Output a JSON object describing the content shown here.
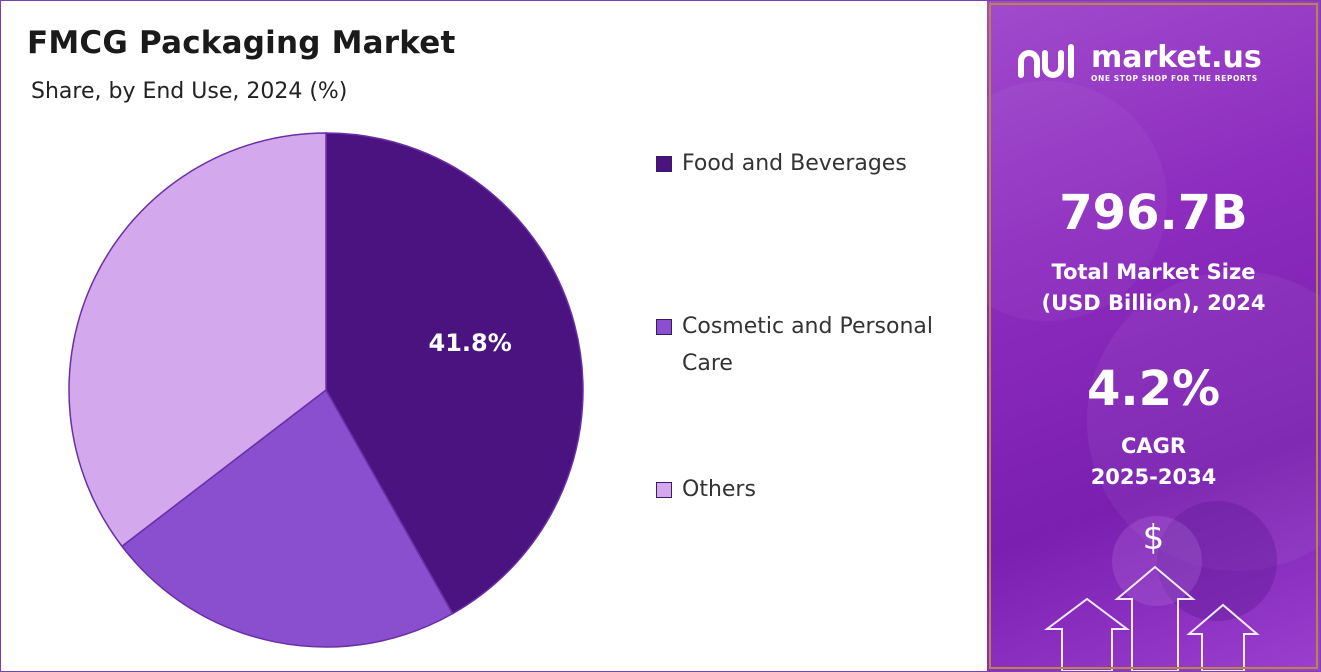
{
  "chart_data": {
    "type": "pie",
    "title": "FMCG Packaging Market",
    "subtitle": "Share, by End Use, 2024 (%)",
    "categories": [
      "Food and Beverages",
      "Cosmetic and Personal Care",
      "Others"
    ],
    "values": [
      41.8,
      22.8,
      35.4
    ],
    "data_labels": [
      "41.8%",
      "",
      ""
    ],
    "colors": [
      "#4b1380",
      "#8a4fcf",
      "#d3a8ec"
    ],
    "legend_position": "right"
  },
  "legend": {
    "items": [
      {
        "label": "Food and Beverages",
        "color": "#4b1380"
      },
      {
        "label": "Cosmetic and Personal Care",
        "color": "#8a4fcf"
      },
      {
        "label": "Others",
        "color": "#d3a8ec"
      }
    ]
  },
  "panel": {
    "brand": "market.us",
    "tagline": "ONE STOP SHOP FOR THE REPORTS",
    "market_size_value": "796.7B",
    "market_size_label_1": "Total Market Size",
    "market_size_label_2": "(USD Billion), 2024",
    "cagr_value": "4.2%",
    "cagr_label_1": "CAGR",
    "cagr_label_2": "2025-2034",
    "dollar_symbol": "$"
  },
  "colors": {
    "accent": "#7a3fb0",
    "panel_bg": "#8d2cbf"
  },
  "icons": [
    "market-us-logo-icon",
    "dollar-icon",
    "arrow-up-icon"
  ]
}
